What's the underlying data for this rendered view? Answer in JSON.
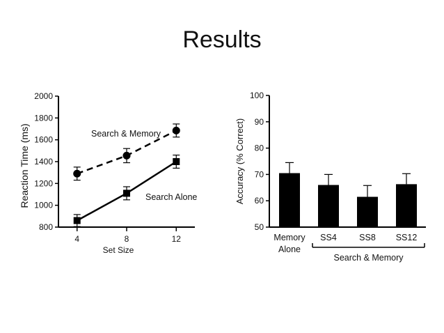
{
  "slide": {
    "title": "Results"
  },
  "chart_data": [
    {
      "type": "line",
      "xlabel": "Set Size",
      "ylabel": "Reaction Time (ms)",
      "x": [
        4,
        8,
        12
      ],
      "xlim": [
        2.5,
        13.5
      ],
      "ylim": [
        800,
        2000
      ],
      "yticks": [
        800,
        1000,
        1200,
        1400,
        1600,
        1800,
        2000
      ],
      "grid": false,
      "series": [
        {
          "name": "Search & Memory",
          "style": "dashed",
          "marker": "circle",
          "values": [
            1290,
            1455,
            1685
          ],
          "errors": [
            60,
            65,
            60
          ]
        },
        {
          "name": "Search Alone",
          "style": "solid",
          "marker": "square",
          "values": [
            860,
            1110,
            1400
          ],
          "errors": [
            55,
            60,
            60
          ]
        }
      ]
    },
    {
      "type": "bar",
      "ylabel": "Accuracy (% Correct)",
      "ylim": [
        50,
        100
      ],
      "yticks": [
        50,
        60,
        70,
        80,
        90,
        100
      ],
      "grid": false,
      "categories": [
        "Memory Alone",
        "SS4",
        "SS8",
        "SS12"
      ],
      "category_lines": [
        [
          "Memory",
          "Alone"
        ],
        [
          "SS4"
        ],
        [
          "SS8"
        ],
        [
          "SS12"
        ]
      ],
      "values": [
        70.5,
        66,
        61.5,
        66.3
      ],
      "errors": [
        4,
        4,
        4.3,
        4
      ],
      "group_label": "Search & Memory",
      "color": "#000000"
    }
  ]
}
